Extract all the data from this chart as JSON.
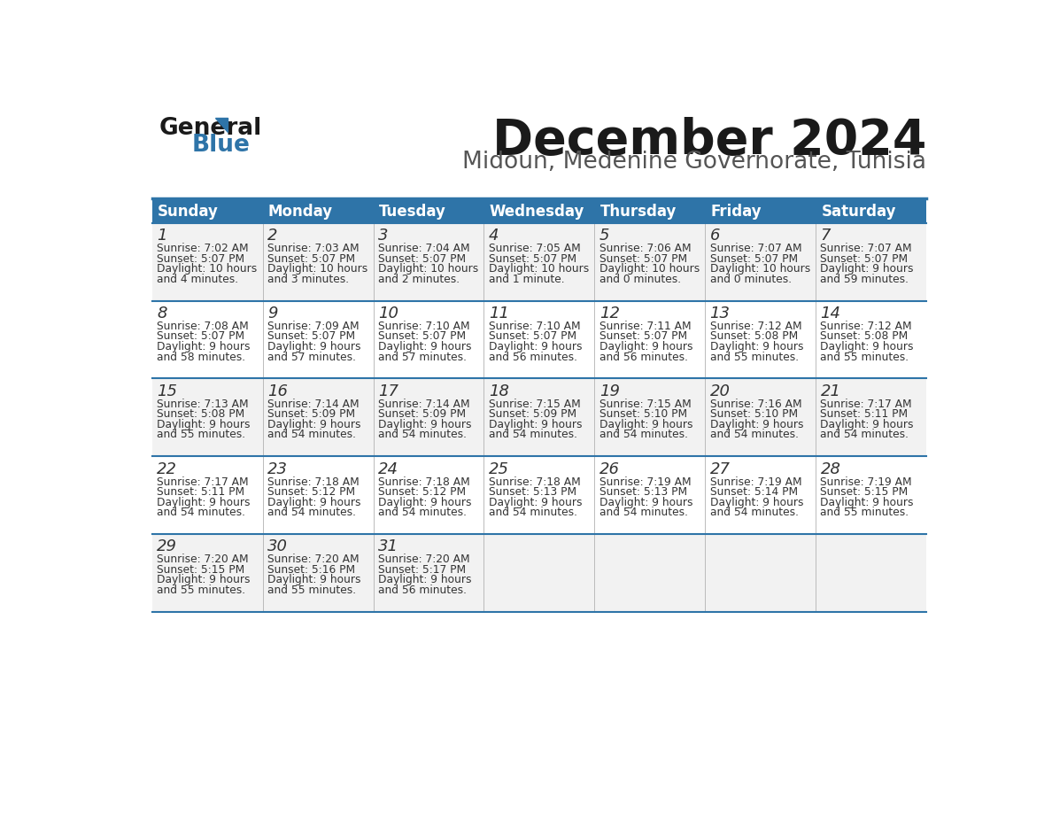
{
  "title": "December 2024",
  "subtitle": "Midoun, Medenine Governorate, Tunisia",
  "header_bg_color": "#2E74A8",
  "header_text_color": "#FFFFFF",
  "cell_bg_color_light": "#F2F2F2",
  "cell_bg_color_white": "#FFFFFF",
  "divider_color": "#2E74A8",
  "text_color": "#333333",
  "days_of_week": [
    "Sunday",
    "Monday",
    "Tuesday",
    "Wednesday",
    "Thursday",
    "Friday",
    "Saturday"
  ],
  "calendar_data": [
    [
      {
        "day": 1,
        "sunrise": "7:02 AM",
        "sunset": "5:07 PM",
        "daylight_hours": 10,
        "daylight_minutes": 4
      },
      {
        "day": 2,
        "sunrise": "7:03 AM",
        "sunset": "5:07 PM",
        "daylight_hours": 10,
        "daylight_minutes": 3
      },
      {
        "day": 3,
        "sunrise": "7:04 AM",
        "sunset": "5:07 PM",
        "daylight_hours": 10,
        "daylight_minutes": 2
      },
      {
        "day": 4,
        "sunrise": "7:05 AM",
        "sunset": "5:07 PM",
        "daylight_hours": 10,
        "daylight_minutes": 1
      },
      {
        "day": 5,
        "sunrise": "7:06 AM",
        "sunset": "5:07 PM",
        "daylight_hours": 10,
        "daylight_minutes": 0
      },
      {
        "day": 6,
        "sunrise": "7:07 AM",
        "sunset": "5:07 PM",
        "daylight_hours": 10,
        "daylight_minutes": 0
      },
      {
        "day": 7,
        "sunrise": "7:07 AM",
        "sunset": "5:07 PM",
        "daylight_hours": 9,
        "daylight_minutes": 59
      }
    ],
    [
      {
        "day": 8,
        "sunrise": "7:08 AM",
        "sunset": "5:07 PM",
        "daylight_hours": 9,
        "daylight_minutes": 58
      },
      {
        "day": 9,
        "sunrise": "7:09 AM",
        "sunset": "5:07 PM",
        "daylight_hours": 9,
        "daylight_minutes": 57
      },
      {
        "day": 10,
        "sunrise": "7:10 AM",
        "sunset": "5:07 PM",
        "daylight_hours": 9,
        "daylight_minutes": 57
      },
      {
        "day": 11,
        "sunrise": "7:10 AM",
        "sunset": "5:07 PM",
        "daylight_hours": 9,
        "daylight_minutes": 56
      },
      {
        "day": 12,
        "sunrise": "7:11 AM",
        "sunset": "5:07 PM",
        "daylight_hours": 9,
        "daylight_minutes": 56
      },
      {
        "day": 13,
        "sunrise": "7:12 AM",
        "sunset": "5:08 PM",
        "daylight_hours": 9,
        "daylight_minutes": 55
      },
      {
        "day": 14,
        "sunrise": "7:12 AM",
        "sunset": "5:08 PM",
        "daylight_hours": 9,
        "daylight_minutes": 55
      }
    ],
    [
      {
        "day": 15,
        "sunrise": "7:13 AM",
        "sunset": "5:08 PM",
        "daylight_hours": 9,
        "daylight_minutes": 55
      },
      {
        "day": 16,
        "sunrise": "7:14 AM",
        "sunset": "5:09 PM",
        "daylight_hours": 9,
        "daylight_minutes": 54
      },
      {
        "day": 17,
        "sunrise": "7:14 AM",
        "sunset": "5:09 PM",
        "daylight_hours": 9,
        "daylight_minutes": 54
      },
      {
        "day": 18,
        "sunrise": "7:15 AM",
        "sunset": "5:09 PM",
        "daylight_hours": 9,
        "daylight_minutes": 54
      },
      {
        "day": 19,
        "sunrise": "7:15 AM",
        "sunset": "5:10 PM",
        "daylight_hours": 9,
        "daylight_minutes": 54
      },
      {
        "day": 20,
        "sunrise": "7:16 AM",
        "sunset": "5:10 PM",
        "daylight_hours": 9,
        "daylight_minutes": 54
      },
      {
        "day": 21,
        "sunrise": "7:17 AM",
        "sunset": "5:11 PM",
        "daylight_hours": 9,
        "daylight_minutes": 54
      }
    ],
    [
      {
        "day": 22,
        "sunrise": "7:17 AM",
        "sunset": "5:11 PM",
        "daylight_hours": 9,
        "daylight_minutes": 54
      },
      {
        "day": 23,
        "sunrise": "7:18 AM",
        "sunset": "5:12 PM",
        "daylight_hours": 9,
        "daylight_minutes": 54
      },
      {
        "day": 24,
        "sunrise": "7:18 AM",
        "sunset": "5:12 PM",
        "daylight_hours": 9,
        "daylight_minutes": 54
      },
      {
        "day": 25,
        "sunrise": "7:18 AM",
        "sunset": "5:13 PM",
        "daylight_hours": 9,
        "daylight_minutes": 54
      },
      {
        "day": 26,
        "sunrise": "7:19 AM",
        "sunset": "5:13 PM",
        "daylight_hours": 9,
        "daylight_minutes": 54
      },
      {
        "day": 27,
        "sunrise": "7:19 AM",
        "sunset": "5:14 PM",
        "daylight_hours": 9,
        "daylight_minutes": 54
      },
      {
        "day": 28,
        "sunrise": "7:19 AM",
        "sunset": "5:15 PM",
        "daylight_hours": 9,
        "daylight_minutes": 55
      }
    ],
    [
      {
        "day": 29,
        "sunrise": "7:20 AM",
        "sunset": "5:15 PM",
        "daylight_hours": 9,
        "daylight_minutes": 55
      },
      {
        "day": 30,
        "sunrise": "7:20 AM",
        "sunset": "5:16 PM",
        "daylight_hours": 9,
        "daylight_minutes": 55
      },
      {
        "day": 31,
        "sunrise": "7:20 AM",
        "sunset": "5:17 PM",
        "daylight_hours": 9,
        "daylight_minutes": 56
      },
      null,
      null,
      null,
      null
    ]
  ],
  "logo_general_color": "#1a1a1a",
  "logo_blue_color": "#2E74A8",
  "logo_triangle_color": "#2E74A8"
}
